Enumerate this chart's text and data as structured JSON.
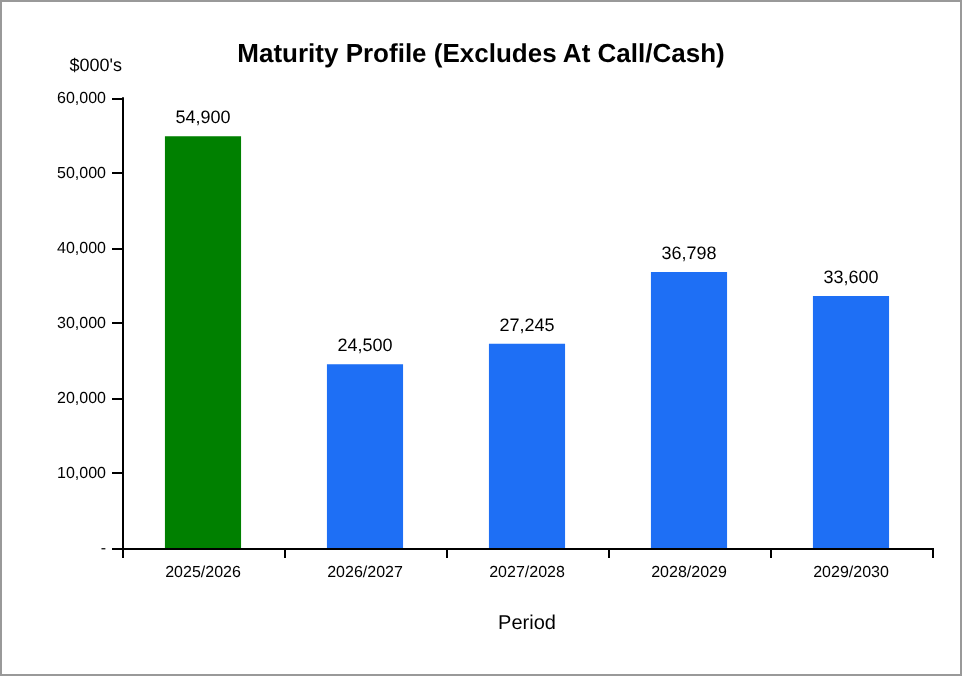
{
  "chart_data": {
    "type": "bar",
    "title": "Maturity Profile (Excludes At Call/Cash)",
    "xlabel": "Period",
    "ylabel": "$000's",
    "categories": [
      "2025/2026",
      "2026/2027",
      "2027/2028",
      "2028/2029",
      "2029/2030"
    ],
    "values": [
      54900,
      24500,
      27245,
      36798,
      33600
    ],
    "colors": [
      "#008000",
      "#1e6ff5",
      "#1e6ff5",
      "#1e6ff5",
      "#1e6ff5"
    ],
    "value_labels": [
      "54,900",
      "24,500",
      "27,245",
      "36,798",
      "33,600"
    ],
    "ylim": [
      0,
      60000
    ],
    "yticks": [
      {
        "value": 0,
        "label": "-"
      },
      {
        "value": 10000,
        "label": "10,000"
      },
      {
        "value": 20000,
        "label": "20,000"
      },
      {
        "value": 30000,
        "label": "30,000"
      },
      {
        "value": 40000,
        "label": "40,000"
      },
      {
        "value": 50000,
        "label": "50,000"
      },
      {
        "value": 60000,
        "label": "60,000"
      }
    ],
    "grid": false
  }
}
